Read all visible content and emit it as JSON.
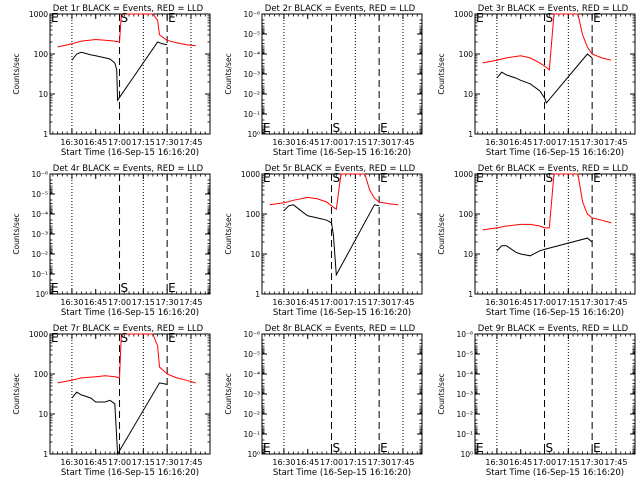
{
  "start_time_label": "Start Time (16-Sep-15 16:16:20)",
  "ylabel": "Counts/sec",
  "time_ticks": [
    "16:30",
    "16:45",
    "17:00",
    "17:15",
    "17:30",
    "17:45"
  ],
  "log_ticks_a": [
    "1",
    "10",
    "100",
    "1000"
  ],
  "log_ticks_b": [
    "10⁰",
    "10⁻¹",
    "10⁻²",
    "10⁻³",
    "10⁻⁴",
    "10⁻⁵",
    "10⁻⁶"
  ],
  "marker_s": "S",
  "marker_e": "E",
  "colors": {
    "events": "#000000",
    "lld": "#ff0000"
  },
  "chart_data": [
    {
      "type": "line",
      "title": "Det 1r BLACK = Events, RED = LLD",
      "scale": "log",
      "ylim": [
        1,
        1000
      ],
      "active": true,
      "series": [
        {
          "name": "LLD",
          "x": [
            16.35,
            16.5,
            16.6,
            16.75,
            16.85,
            16.95,
            17.0,
            17.02,
            17.08,
            17.15,
            17.35,
            17.4,
            17.42,
            17.5,
            17.6,
            17.7,
            17.8
          ],
          "values": [
            150,
            180,
            210,
            230,
            220,
            210,
            200,
            1000,
            1000,
            1000,
            1000,
            700,
            300,
            220,
            190,
            170,
            160
          ]
        },
        {
          "name": "Events",
          "x": [
            16.5,
            16.55,
            16.6,
            16.7,
            16.75,
            16.85,
            16.9,
            16.95,
            16.97,
            16.98,
            17.4,
            17.45,
            17.5
          ],
          "values": [
            70,
            100,
            110,
            95,
            90,
            80,
            75,
            60,
            40,
            7,
            200,
            180,
            170
          ]
        }
      ]
    },
    {
      "type": "line",
      "title": "Det 2r BLACK = Events, RED = LLD",
      "scale": "zero",
      "ylim": [
        1e-06,
        1
      ],
      "active": false,
      "series": []
    },
    {
      "type": "line",
      "title": "Det 3r BLACK = Events, RED = LLD",
      "scale": "log",
      "ylim": [
        1,
        1000
      ],
      "active": true,
      "series": [
        {
          "name": "LLD",
          "x": [
            16.35,
            16.5,
            16.6,
            16.75,
            16.85,
            16.95,
            17.0,
            17.05,
            17.1,
            17.15,
            17.35,
            17.4,
            17.45,
            17.5,
            17.6,
            17.7
          ],
          "values": [
            60,
            70,
            80,
            90,
            80,
            60,
            50,
            40,
            1000,
            1000,
            1000,
            300,
            150,
            100,
            80,
            70
          ]
        },
        {
          "name": "Events",
          "x": [
            16.5,
            16.55,
            16.6,
            16.7,
            16.75,
            16.85,
            16.95,
            17.0,
            17.02,
            17.45,
            17.5
          ],
          "values": [
            25,
            35,
            30,
            25,
            22,
            18,
            12,
            8,
            6,
            100,
            80
          ]
        }
      ]
    },
    {
      "type": "line",
      "title": "Det 4r BLACK = Events, RED = LLD",
      "scale": "zero",
      "ylim": [
        1e-06,
        1
      ],
      "active": false,
      "series": []
    },
    {
      "type": "line",
      "title": "Det 5r BLACK = Events, RED = LLD",
      "scale": "log",
      "ylim": [
        1,
        1000
      ],
      "active": true,
      "series": [
        {
          "name": "LLD",
          "x": [
            16.35,
            16.5,
            16.6,
            16.75,
            16.85,
            16.95,
            17.0,
            17.05,
            17.1,
            17.15,
            17.35,
            17.4,
            17.45,
            17.5,
            17.6,
            17.7
          ],
          "values": [
            170,
            190,
            220,
            260,
            240,
            200,
            160,
            130,
            1000,
            1000,
            1000,
            400,
            250,
            200,
            180,
            170
          ]
        },
        {
          "name": "Events",
          "x": [
            16.5,
            16.55,
            16.6,
            16.7,
            16.75,
            16.85,
            16.95,
            17.0,
            17.02,
            17.05,
            17.45,
            17.5
          ],
          "values": [
            120,
            160,
            170,
            110,
            90,
            80,
            70,
            60,
            30,
            3,
            170,
            160
          ]
        }
      ]
    },
    {
      "type": "line",
      "title": "Det 6r BLACK = Events, RED = LLD",
      "scale": "log",
      "ylim": [
        1,
        1000
      ],
      "active": true,
      "series": [
        {
          "name": "LLD",
          "x": [
            16.35,
            16.5,
            16.6,
            16.75,
            16.85,
            16.95,
            17.0,
            17.05,
            17.1,
            17.15,
            17.35,
            17.4,
            17.45,
            17.5,
            17.6,
            17.7
          ],
          "values": [
            40,
            45,
            50,
            55,
            55,
            50,
            45,
            45,
            1000,
            1000,
            1000,
            200,
            100,
            80,
            70,
            60
          ]
        },
        {
          "name": "Events",
          "x": [
            16.5,
            16.55,
            16.6,
            16.7,
            16.75,
            16.85,
            16.95,
            17.0,
            17.45,
            17.5
          ],
          "values": [
            12,
            16,
            16,
            11,
            10,
            9,
            12,
            13,
            25,
            20
          ]
        }
      ]
    },
    {
      "type": "line",
      "title": "Det 7r BLACK = Events, RED = LLD",
      "scale": "log",
      "ylim": [
        1,
        1000
      ],
      "active": true,
      "series": [
        {
          "name": "LLD",
          "x": [
            16.35,
            16.5,
            16.6,
            16.75,
            16.85,
            16.95,
            17.0,
            17.02,
            17.08,
            17.15,
            17.35,
            17.4,
            17.42,
            17.5,
            17.6,
            17.7,
            17.8
          ],
          "values": [
            60,
            70,
            80,
            85,
            90,
            85,
            80,
            1000,
            1000,
            1000,
            1000,
            500,
            150,
            100,
            80,
            70,
            60
          ]
        },
        {
          "name": "Events",
          "x": [
            16.5,
            16.55,
            16.6,
            16.7,
            16.75,
            16.85,
            16.9,
            16.95,
            16.98,
            17.42,
            17.5
          ],
          "values": [
            25,
            35,
            30,
            25,
            20,
            20,
            22,
            18,
            1,
            60,
            55
          ]
        }
      ]
    },
    {
      "type": "line",
      "title": "Det 8r BLACK = Events, RED = LLD",
      "scale": "zero",
      "ylim": [
        1e-06,
        1
      ],
      "active": false,
      "series": []
    },
    {
      "type": "line",
      "title": "Det 9r BLACK = Events, RED = LLD",
      "scale": "zero",
      "ylim": [
        1e-06,
        1
      ],
      "active": false,
      "series": []
    }
  ]
}
